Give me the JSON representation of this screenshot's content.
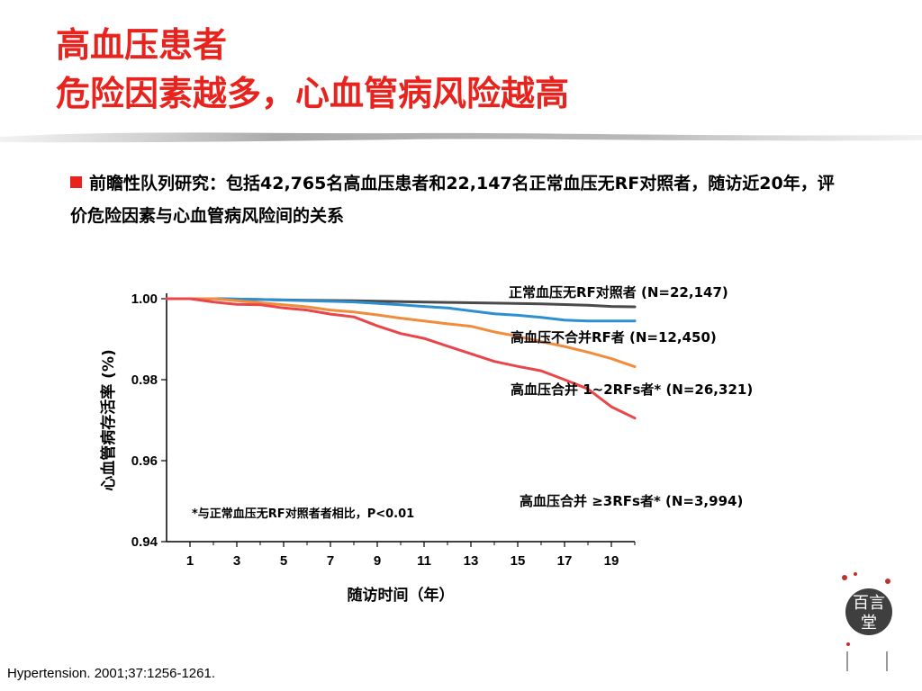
{
  "slide": {
    "title_line1": "高血压患者",
    "title_line2": "危险因素越多，心血管病风险越高",
    "bullet_text": "前瞻性队列研究：包括42,765名高血压患者和22,147名正常血压无RF对照者，随访近20年，评价危险因素与心血管病风险间的关系",
    "reference": "Hypertension. 2001;37:1256-1261.",
    "logo_text": "百言堂"
  },
  "colors": {
    "title": "#e8231e",
    "bullet": "#e8231e"
  },
  "chart_data": {
    "type": "line",
    "xlabel": "随访时间（年）",
    "ylabel": "心血管病存活率 (%)",
    "xticks": [
      1,
      3,
      5,
      7,
      9,
      11,
      13,
      15,
      17,
      19
    ],
    "yticks": [
      "0.94",
      "0.96",
      "0.98",
      "1.00"
    ],
    "xlim": [
      0,
      20
    ],
    "ylim": [
      0.94,
      1.0
    ],
    "annotation": "*与正常血压无RF对照者者相比，P<0.01",
    "series": [
      {
        "name": "正常血压无RF对照者 (N=22,147)",
        "color": "#4a4a4a",
        "x": [
          0,
          2,
          4,
          6,
          8,
          10,
          12,
          14,
          16,
          18,
          19,
          20
        ],
        "y": [
          1.0,
          1.0,
          0.9998,
          0.9996,
          0.9995,
          0.9993,
          0.9991,
          0.9989,
          0.9987,
          0.9984,
          0.9981,
          0.998
        ]
      },
      {
        "name": "高血压不合并RF者 (N=12,450)",
        "color": "#2c8fd0",
        "x": [
          0,
          2,
          4,
          6,
          8,
          10,
          11,
          12,
          13,
          14,
          15,
          16,
          17,
          18,
          19,
          20
        ],
        "y": [
          1.0,
          1.0,
          0.9998,
          0.9995,
          0.9992,
          0.9985,
          0.9981,
          0.9977,
          0.997,
          0.9963,
          0.9959,
          0.9954,
          0.9947,
          0.9945,
          0.9945,
          0.9945
        ]
      },
      {
        "name": "高血压合并 1~2RFs者* (N=26,321)",
        "color": "#f08c3c",
        "x": [
          0,
          2,
          3,
          4,
          5,
          6,
          7,
          8,
          9,
          10,
          11,
          12,
          13,
          14,
          15,
          16,
          17,
          18,
          19,
          20
        ],
        "y": [
          1.0,
          1.0,
          0.9995,
          0.999,
          0.9985,
          0.998,
          0.9972,
          0.9967,
          0.996,
          0.9952,
          0.9945,
          0.9938,
          0.9932,
          0.9918,
          0.9907,
          0.9894,
          0.9882,
          0.9868,
          0.9852,
          0.9832
        ]
      },
      {
        "name": "高血压合并 ≥3RFs者* (N=3,994)",
        "color": "#e8464a",
        "x": [
          0,
          1,
          2,
          3,
          4,
          5,
          6,
          7,
          8,
          9,
          10,
          11,
          12,
          13,
          14,
          15,
          16,
          17,
          18,
          19,
          20
        ],
        "y": [
          1.0,
          1.0,
          0.9992,
          0.9986,
          0.9985,
          0.9977,
          0.9972,
          0.9962,
          0.9955,
          0.9933,
          0.9914,
          0.9902,
          0.9883,
          0.9864,
          0.9845,
          0.9833,
          0.9822,
          0.98,
          0.9777,
          0.9733,
          0.9705
        ]
      }
    ]
  }
}
